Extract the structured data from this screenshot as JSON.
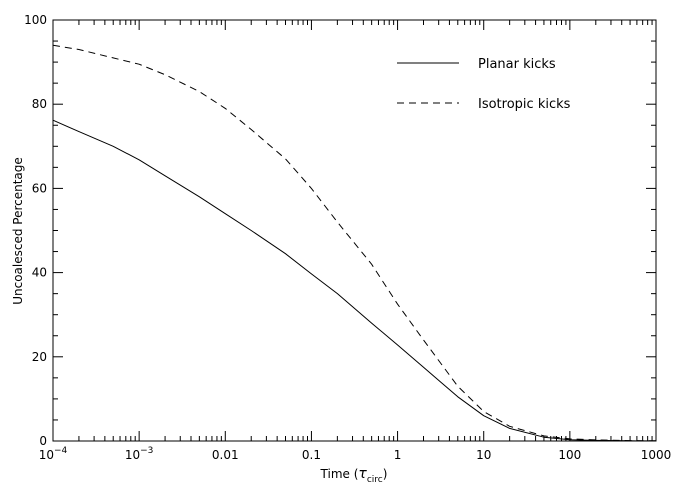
{
  "chart_data": {
    "type": "line",
    "title": "",
    "xlabel_main": "Time (",
    "xlabel_symbol": "τ",
    "xlabel_sub": "circ",
    "xlabel_close": ")",
    "ylabel": "Uncoalesced Percentage",
    "xscale": "log",
    "xlim": [
      0.0001,
      1000
    ],
    "ylim": [
      0,
      100
    ],
    "legend_position": "top-right",
    "x_ticks": [
      {
        "value": 0.0001,
        "base": "10",
        "exp": "−4"
      },
      {
        "value": 0.001,
        "base": "10",
        "exp": "−3"
      },
      {
        "value": 0.01,
        "label": "0.01"
      },
      {
        "value": 0.1,
        "label": "0.1"
      },
      {
        "value": 1,
        "label": "1"
      },
      {
        "value": 10,
        "label": "10"
      },
      {
        "value": 100,
        "label": "100"
      },
      {
        "value": 1000,
        "label": "1000"
      }
    ],
    "y_ticks": [
      {
        "value": 0,
        "label": "0"
      },
      {
        "value": 20,
        "label": "20"
      },
      {
        "value": 40,
        "label": "40"
      },
      {
        "value": 60,
        "label": "60"
      },
      {
        "value": 80,
        "label": "80"
      },
      {
        "value": 100,
        "label": "100"
      }
    ],
    "series": [
      {
        "name": "Planar kicks",
        "style": "solid",
        "x": [
          0.0001,
          0.0002,
          0.0005,
          0.001,
          0.002,
          0.005,
          0.01,
          0.02,
          0.05,
          0.1,
          0.2,
          0.5,
          1,
          2,
          5,
          10,
          20,
          50,
          100,
          200,
          500,
          1000
        ],
        "y": [
          76.2,
          73.5,
          70,
          66.8,
          63,
          58,
          54,
          50,
          44.5,
          39.7,
          35,
          28,
          22.8,
          17.5,
          10.5,
          6,
          3,
          0.9,
          0.3,
          0.15,
          0.05,
          0.02
        ]
      },
      {
        "name": "Isotropic kicks",
        "style": "dashed",
        "x": [
          0.0001,
          0.0002,
          0.0005,
          0.001,
          0.002,
          0.005,
          0.01,
          0.02,
          0.05,
          0.1,
          0.2,
          0.5,
          1,
          2,
          5,
          10,
          20,
          50,
          100,
          200,
          500,
          1000
        ],
        "y": [
          94,
          93,
          91,
          89.5,
          87,
          83,
          79,
          74,
          67,
          60,
          52,
          42,
          32.5,
          24,
          13,
          7,
          3.5,
          1.2,
          0.5,
          0.25,
          0.1,
          0.05
        ]
      }
    ]
  }
}
